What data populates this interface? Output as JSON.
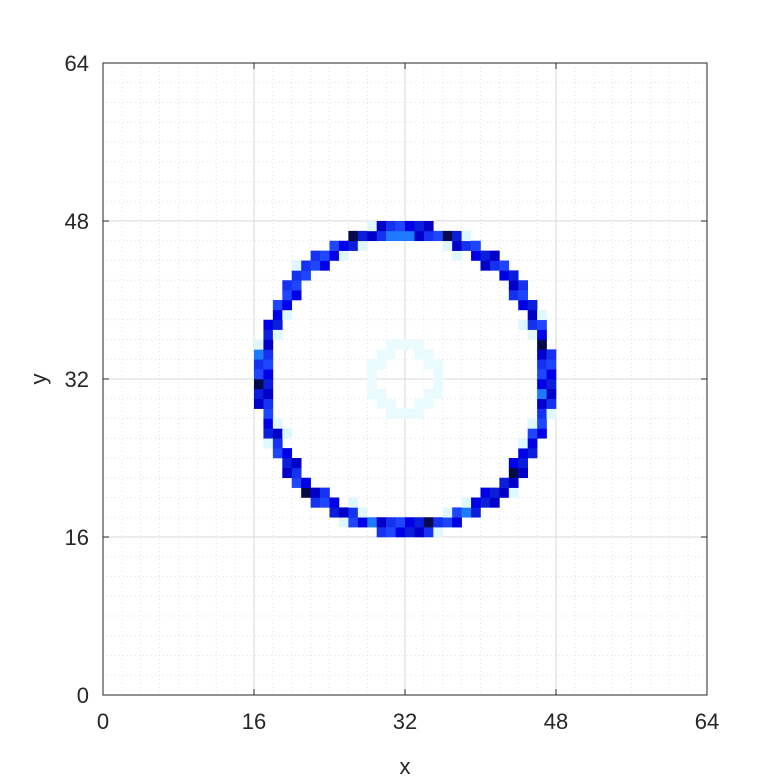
{
  "chart_data": {
    "type": "heatmap",
    "title": "",
    "xlabel": "x",
    "ylabel": "y",
    "xlim": [
      0,
      64
    ],
    "ylim": [
      0,
      64
    ],
    "xticks": [
      "0",
      "16",
      "32",
      "48",
      "64"
    ],
    "yticks": [
      "0",
      "16",
      "32",
      "48",
      "64"
    ],
    "grid": true,
    "minor_grid": true,
    "colormap": "white-cyan-blue-black",
    "colors": {
      "background": "#ffffff",
      "low": "#ffffff",
      "faint": "#e8fbff",
      "mid": "#1e4bff",
      "high": "#0000e0",
      "peak": "#000000"
    },
    "ring": {
      "description_values": "circle of high-intensity cells",
      "center": [
        32,
        32
      ],
      "radius": 15,
      "cell_size": 1
    },
    "inner_faint_ring": {
      "center": [
        32,
        32
      ],
      "radius": 3.5
    },
    "dark_cells": [
      [
        21,
        20
      ],
      [
        43,
        22
      ],
      [
        26,
        46
      ],
      [
        34,
        17
      ],
      [
        46,
        35
      ],
      [
        16,
        31
      ],
      [
        36,
        46
      ],
      [
        44,
        25
      ]
    ],
    "light_cells": [
      [
        30,
        46
      ],
      [
        31,
        46
      ],
      [
        32,
        46
      ],
      [
        16,
        34
      ],
      [
        46,
        30
      ],
      [
        38,
        18
      ],
      [
        28,
        17
      ],
      [
        20,
        43
      ]
    ]
  }
}
